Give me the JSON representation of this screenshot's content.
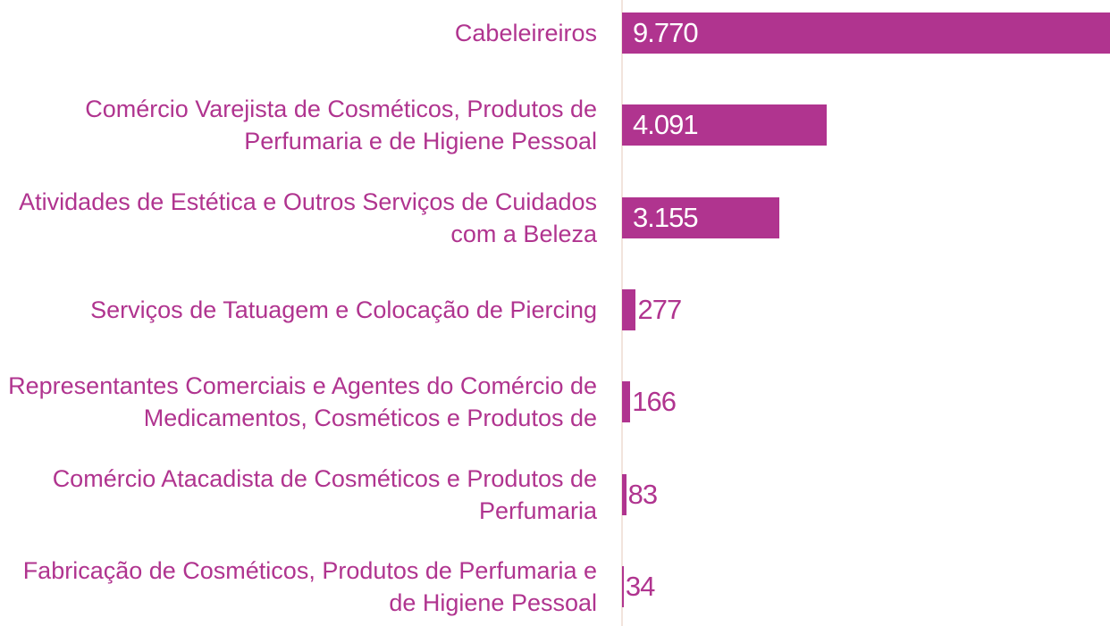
{
  "chart_data": {
    "type": "bar",
    "orientation": "horizontal",
    "categories": [
      "Cabeleireiros",
      "Comércio Varejista de Cosméticos, Produtos de Perfumaria e de Higiene Pessoal",
      "Atividades de Estética e Outros Serviços de Cuidados com a Beleza",
      "Serviços de Tatuagem e Colocação de Piercing",
      "Representantes Comerciais e Agentes do Comércio de Medicamentos, Cosméticos e Produtos de",
      "Comércio Atacadista de Cosméticos e Produtos de Perfumaria",
      "Fabricação de Cosméticos, Produtos de Perfumaria e de Higiene Pessoal"
    ],
    "values": [
      9770,
      4091,
      3155,
      277,
      166,
      83,
      34
    ],
    "value_labels": [
      "9.770",
      "4.091",
      "3.155",
      "277",
      "166",
      "83",
      "34"
    ],
    "color": "#b0348f",
    "xlim": [
      0,
      9770
    ]
  }
}
